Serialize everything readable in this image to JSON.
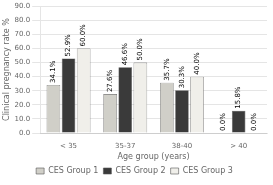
{
  "chart_data": {
    "type": "bar",
    "categories": [
      "< 35",
      "35-37",
      "38-40",
      "> 40"
    ],
    "series": [
      {
        "name": "CES Group 1",
        "color": "#d0cfc8",
        "values": [
          34.1,
          27.6,
          35.7,
          0.0
        ],
        "value_labels": [
          "34.1%",
          "27.6%",
          "35.7%",
          "0.0%"
        ]
      },
      {
        "name": "CES Group 2",
        "color": "#3a3a3a",
        "values": [
          52.9,
          46.6,
          30.3,
          15.8
        ],
        "value_labels": [
          "52.9%",
          "46.6%",
          "30.3%",
          "15.8%"
        ]
      },
      {
        "name": "CES Group 3",
        "color": "#f0efea",
        "values": [
          60.0,
          50.0,
          40.0,
          0.0
        ],
        "value_labels": [
          "60.0%",
          "50.0%",
          "40.0%",
          "0.0%"
        ]
      }
    ],
    "ylabel": "Clinical pregnancy rate %",
    "xlabel": "Age group (years)",
    "ylim": [
      0,
      90
    ],
    "yticks": [
      {
        "value": 0,
        "label": "0.0"
      },
      {
        "value": 10,
        "label": "10.0"
      },
      {
        "value": 20,
        "label": "20.0"
      },
      {
        "value": 30,
        "label": "30.0"
      },
      {
        "value": 40,
        "label": "40.0"
      },
      {
        "value": 50,
        "label": "50.0"
      },
      {
        "value": 60,
        "label": "60.0"
      },
      {
        "value": 70,
        "label": "70.0"
      },
      {
        "value": 80,
        "label": "80.0"
      },
      {
        "value": 90,
        "label": "90.0"
      }
    ],
    "grid": true,
    "legend": "bottom",
    "data_labels": true
  }
}
